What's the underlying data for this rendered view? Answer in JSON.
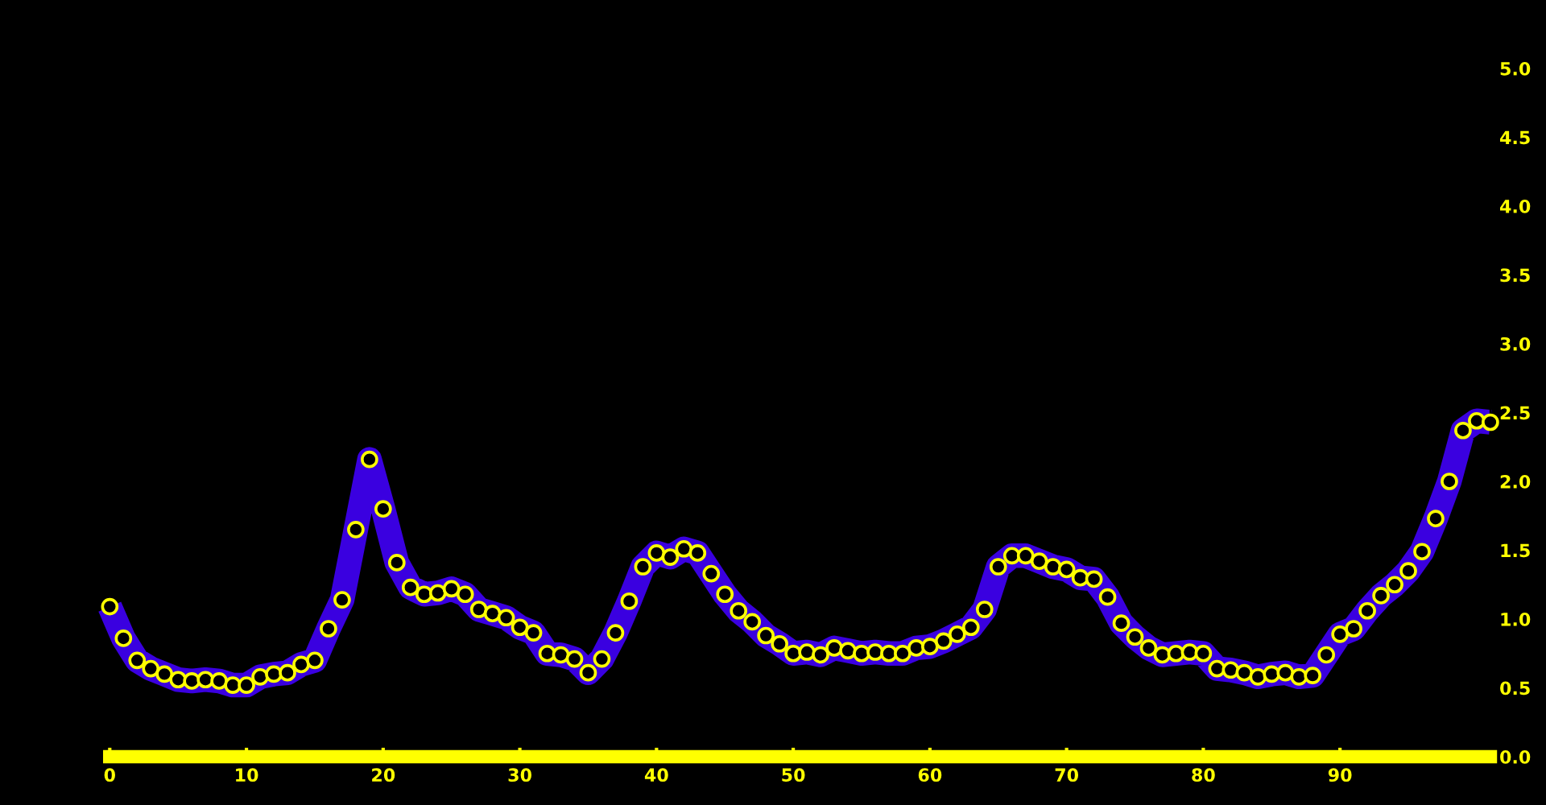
{
  "chart_data": {
    "type": "line",
    "x": [
      0,
      1,
      2,
      3,
      4,
      5,
      6,
      7,
      8,
      9,
      10,
      11,
      12,
      13,
      14,
      15,
      16,
      17,
      18,
      19,
      20,
      21,
      22,
      23,
      24,
      25,
      26,
      27,
      28,
      29,
      30,
      31,
      32,
      33,
      34,
      35,
      36,
      37,
      38,
      39,
      40,
      41,
      42,
      43,
      44,
      45,
      46,
      47,
      48,
      49,
      50,
      51,
      52,
      53,
      54,
      55,
      56,
      57,
      58,
      59,
      60,
      61,
      62,
      63,
      64,
      65,
      66,
      67,
      68,
      69,
      70,
      71,
      72,
      73,
      74,
      75,
      76,
      77,
      78,
      79,
      80,
      81,
      82,
      83,
      84,
      85,
      86,
      87,
      88,
      89,
      90,
      91,
      92,
      93,
      94,
      95,
      96,
      97,
      98,
      99,
      100,
      101
    ],
    "series": [
      {
        "color": "#3a00e0",
        "values": [
          1.09,
          0.86,
          0.7,
          0.64,
          0.6,
          0.56,
          0.55,
          0.56,
          0.55,
          0.52,
          0.52,
          0.58,
          0.6,
          0.61,
          0.67,
          0.7,
          0.93,
          1.14,
          1.65,
          2.16,
          1.8,
          1.41,
          1.23,
          1.18,
          1.19,
          1.22,
          1.18,
          1.07,
          1.04,
          1.01,
          0.94,
          0.9,
          0.75,
          0.74,
          0.71,
          0.61,
          0.71,
          0.9,
          1.13,
          1.38,
          1.48,
          1.45,
          1.51,
          1.48,
          1.33,
          1.18,
          1.06,
          0.98,
          0.88,
          0.82,
          0.75,
          0.76,
          0.74,
          0.79,
          0.77,
          0.75,
          0.76,
          0.75,
          0.75,
          0.79,
          0.8,
          0.84,
          0.89,
          0.94,
          1.07,
          1.38,
          1.46,
          1.46,
          1.42,
          1.38,
          1.36,
          1.3,
          1.29,
          1.16,
          0.97,
          0.87,
          0.79,
          0.74,
          0.75,
          0.76,
          0.75,
          0.64,
          0.63,
          0.61,
          0.58,
          0.6,
          0.61,
          0.58,
          0.59,
          0.74,
          0.89,
          0.93,
          1.06,
          1.17,
          1.25,
          1.35,
          1.49,
          1.73,
          2.0,
          2.37,
          2.44,
          2.43
        ]
      }
    ],
    "xlim": [
      0,
      101
    ],
    "xticks": [
      0,
      10,
      20,
      30,
      40,
      50,
      60,
      70,
      80,
      90
    ],
    "ylim": [
      0,
      5.0
    ],
    "yticks": [
      {
        "value": 0,
        "label": "0.0"
      },
      {
        "value": 0.5,
        "label": "0.5"
      },
      {
        "value": 1.0,
        "label": "1.0"
      },
      {
        "value": 1.5,
        "label": "1.5"
      },
      {
        "value": 2.0,
        "label": "2.0"
      },
      {
        "value": 2.5,
        "label": "2.5"
      },
      {
        "value": 3.0,
        "label": "3.0"
      },
      {
        "value": 3.5,
        "label": "3.5"
      },
      {
        "value": 4.0,
        "label": "4.0"
      },
      {
        "value": 4.5,
        "label": "4.5"
      },
      {
        "value": 5.0,
        "label": "5.0"
      }
    ],
    "marker": "circle",
    "line_style": "solid",
    "grid": false,
    "legend": false
  }
}
